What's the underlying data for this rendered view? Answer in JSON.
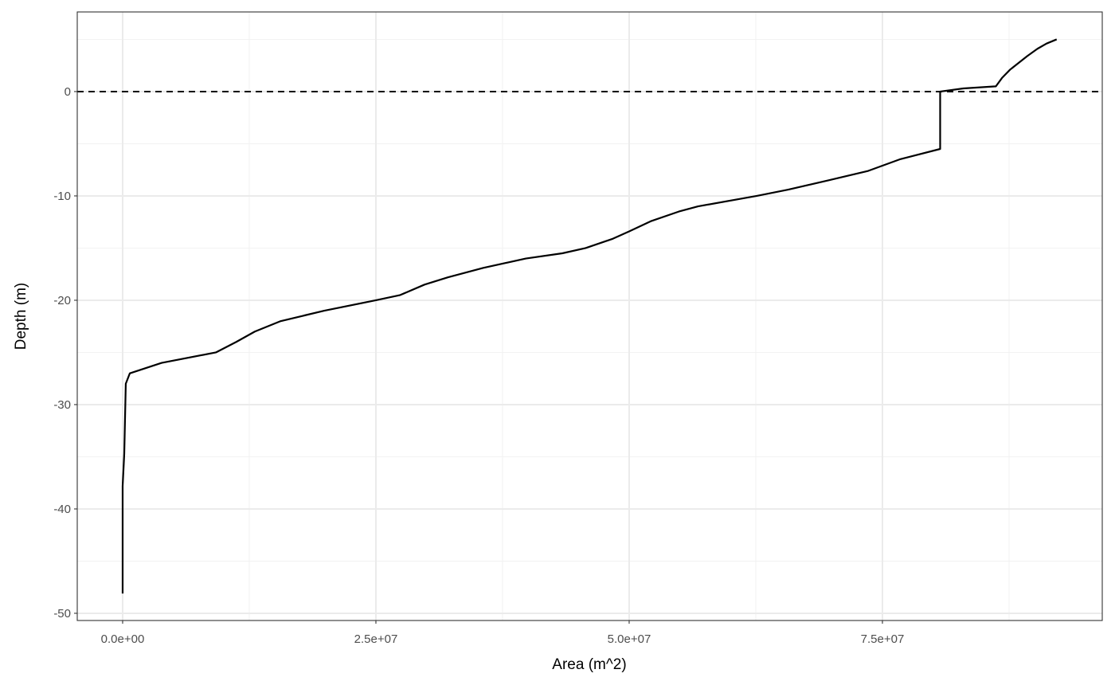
{
  "chart_data": {
    "type": "line",
    "x_label": "Area (m^2)",
    "y_label": "Depth (m)",
    "xlim": [
      -4480000,
      96700000
    ],
    "ylim": [
      -50.69,
      7.63
    ],
    "xticks": [
      {
        "value": 0,
        "label": "0.0e+00"
      },
      {
        "value": 25000000,
        "label": "2.5e+07"
      },
      {
        "value": 50000000,
        "label": "5.0e+07"
      },
      {
        "value": 75000000,
        "label": "7.5e+07"
      }
    ],
    "yticks": [
      -50,
      -40,
      -30,
      -20,
      -10,
      0
    ],
    "grid": true,
    "reference_line": {
      "y": 0,
      "color": "#000000",
      "linestyle": "dashed"
    },
    "series": [
      {
        "color": "#000000",
        "x": [
          0,
          0,
          160000,
          310000,
          710000,
          3850000,
          9200000,
          11200000,
          13050000,
          15600000,
          19900000,
          25000000,
          27400000,
          29800000,
          32100000,
          35600000,
          39800000,
          43400000,
          45700000,
          48400000,
          50000000,
          52200000,
          54900000,
          56800000,
          62600000,
          65700000,
          69700000,
          73600000,
          76700000,
          80700000,
          80700000,
          83000000,
          86200000,
          86800000,
          87600000,
          89300000,
          90300000,
          91200000,
          92200000
        ],
        "values": [
          -48.1,
          -37.8,
          -34.7,
          -28.0,
          -27.0,
          -26.0,
          -25.0,
          -24.0,
          -23.0,
          -22.0,
          -21.0,
          -20.0,
          -19.5,
          -18.5,
          -17.8,
          -16.9,
          -16.0,
          -15.5,
          -15.0,
          -14.1,
          -13.4,
          -12.4,
          -11.5,
          -11.0,
          -10.0,
          -9.4,
          -8.5,
          -7.6,
          -6.5,
          -5.5,
          0,
          0.3,
          0.5,
          1.3,
          2.1,
          3.4,
          4.1,
          4.6,
          5.0
        ]
      }
    ]
  }
}
